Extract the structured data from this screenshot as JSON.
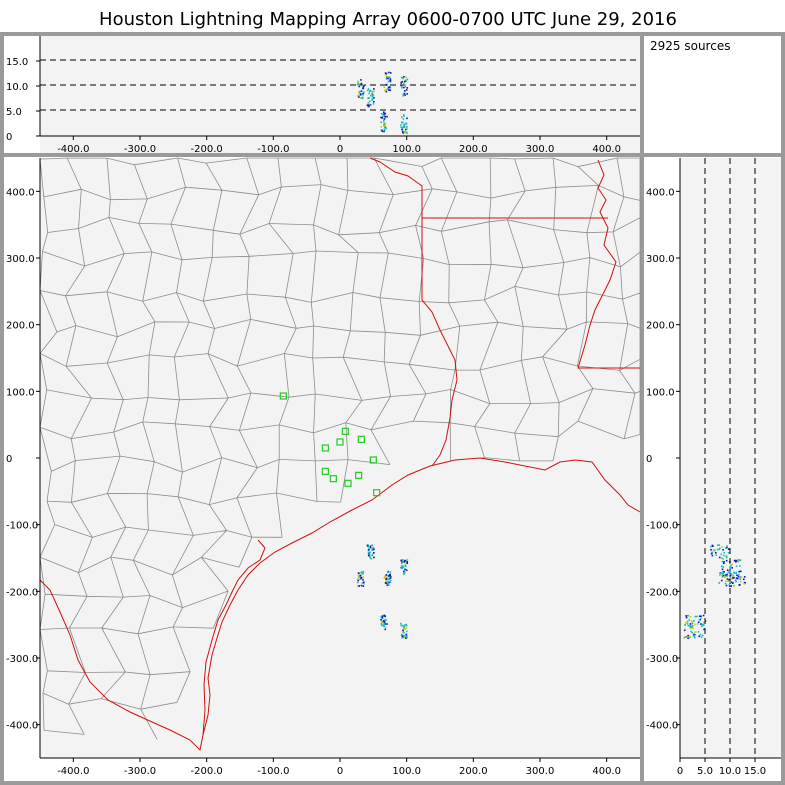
{
  "title": "Houston Lightning Mapping Array   0600-0700 UTC  June 29, 2016",
  "source_count_label": "2925 sources",
  "alt_plot": {
    "y_ticks": [
      "15.0",
      "10.0",
      "5.0",
      "0"
    ],
    "x_ticks": [
      "-400.0",
      "-300.0",
      "-200.0",
      "-100.0",
      "0",
      "100.0",
      "200.0",
      "300.0",
      "400.0"
    ]
  },
  "map": {
    "y_ticks": [
      "400.0",
      "300.0",
      "200.0",
      "100.0",
      "0",
      "-100.0",
      "-200.0",
      "-300.0",
      "-400.0"
    ],
    "x_ticks": [
      "-400.0",
      "-300.0",
      "-200.0",
      "-100.0",
      "0",
      "100.0",
      "200.0",
      "300.0",
      "400.0"
    ]
  },
  "side_plot": {
    "y_ticks": [
      "400.0",
      "300.0",
      "200.0",
      "100.0",
      "0",
      "-100.0",
      "-200.0",
      "-300.0",
      "-400.0"
    ],
    "x_ticks": [
      "0",
      "5.0",
      "10.0",
      "15.0"
    ]
  },
  "colors": {
    "panel_bg": "#f3f3f3",
    "frame": "#9a9a9a",
    "coast": "#d01010",
    "county": "#8c8c8c",
    "station": "#22cc22",
    "src_low": "#1010c0",
    "src_mid": "#10c0c0",
    "src_high": "#c8c800"
  },
  "chart_data": {
    "type": "scatter",
    "map_x_range_km": [
      -450,
      450
    ],
    "map_y_range_km": [
      -450,
      450
    ],
    "altitude_range_km": [
      0,
      20
    ],
    "stations_km": [
      [
        -85,
        93
      ],
      [
        -22,
        15
      ],
      [
        0,
        24
      ],
      [
        8,
        40
      ],
      [
        32,
        28
      ],
      [
        -22,
        -20
      ],
      [
        -10,
        -31
      ],
      [
        12,
        -38
      ],
      [
        28,
        -26
      ],
      [
        50,
        -3
      ],
      [
        55,
        -52
      ]
    ],
    "source_clusters_km": [
      {
        "x": 30,
        "y": -180,
        "alt": 9.5
      },
      {
        "x": 45,
        "y": -140,
        "alt": 8.0
      },
      {
        "x": 70,
        "y": -180,
        "alt": 11.0
      },
      {
        "x": 95,
        "y": -162,
        "alt": 10.0
      },
      {
        "x": 65,
        "y": -245,
        "alt": 3.0
      },
      {
        "x": 95,
        "y": -258,
        "alt": 2.5
      }
    ]
  }
}
